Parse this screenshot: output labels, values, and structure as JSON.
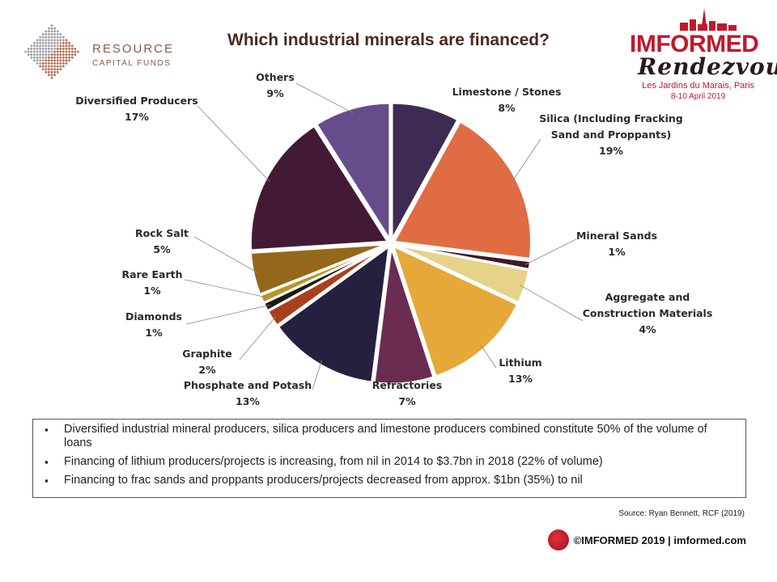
{
  "header": {
    "title": "Which industrial minerals are financed?",
    "rcf_logo_line1": "RESOURCE",
    "rcf_logo_line2": "CAPITAL FUNDS",
    "imf_logo_main": "IMFORMED",
    "imf_logo_script": "Rendezvous",
    "imf_logo_sub1": "Les Jardins du Marais, Paris",
    "imf_logo_sub2": "8-10 April 2019"
  },
  "chart_data": {
    "type": "pie",
    "title": "Which industrial minerals are financed?",
    "slices": [
      {
        "label": "Limestone / Stones",
        "value": 8,
        "value_label": "8%",
        "color": "#3e2b52"
      },
      {
        "label": "Silica (Including Fracking Sand and Proppants)",
        "value": 19,
        "value_label": "19%",
        "color": "#e06c44"
      },
      {
        "label": "Mineral Sands",
        "value": 1,
        "value_label": "1%",
        "color": "#3d1a26"
      },
      {
        "label": "Aggregate and Construction Materials",
        "value": 4,
        "value_label": "4%",
        "color": "#e7d28a"
      },
      {
        "label": "Lithium",
        "value": 13,
        "value_label": "13%",
        "color": "#e6a838"
      },
      {
        "label": "Refractories",
        "value": 7,
        "value_label": "7%",
        "color": "#6b2c52"
      },
      {
        "label": "Phosphate and Potash",
        "value": 13,
        "value_label": "13%",
        "color": "#271f3f"
      },
      {
        "label": "Graphite",
        "value": 2,
        "value_label": "2%",
        "color": "#a8401e"
      },
      {
        "label": "Diamonds",
        "value": 1,
        "value_label": "1%",
        "color": "#1f1712"
      },
      {
        "label": "Rare Earth",
        "value": 1,
        "value_label": "1%",
        "color": "#b7962a"
      },
      {
        "label": "Rock Salt",
        "value": 5,
        "value_label": "5%",
        "color": "#94681a"
      },
      {
        "label": "Diversified Producers",
        "value": 17,
        "value_label": "17%",
        "color": "#431a36"
      },
      {
        "label": "Others",
        "value": 9,
        "value_label": "9%",
        "color": "#674c8c"
      }
    ]
  },
  "notes": [
    "Diversified industrial mineral producers, silica producers and limestone producers combined constitute 50% of the volume of loans",
    "Financing of lithium producers/projects is increasing, from nil in 2014 to $3.7bn in 2018 (22% of volume)",
    "Financing to frac sands and proppants producers/projects decreased from approx. $1bn (35%) to nil"
  ],
  "source": "Source: Ryan Bennett, RCF  (2019)",
  "footer": "©IMFORMED 2019  | imformed.com"
}
